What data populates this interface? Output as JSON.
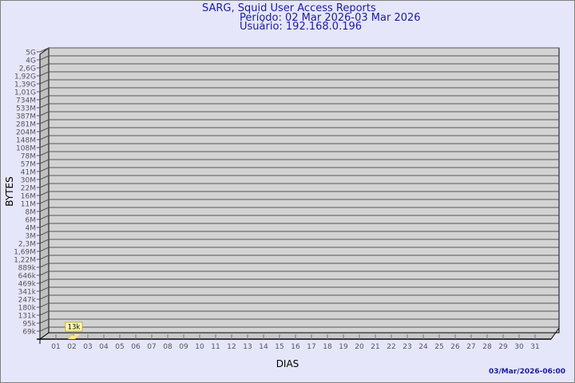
{
  "chart_data": {
    "type": "bar",
    "title": "SARG, Squid User Access Reports",
    "subtitle": [
      "Período: 02 Mar 2026-03 Mar 2026",
      "Usuário: 192.168.0.196"
    ],
    "xlabel": "DIAS",
    "ylabel": "BYTES",
    "y_scale": "log",
    "y_ticks": [
      "5G",
      "4G",
      "2,6G",
      "1,92G",
      "1,39G",
      "1,01G",
      "734M",
      "533M",
      "387M",
      "281M",
      "204M",
      "148M",
      "108M",
      "78M",
      "57M",
      "41M",
      "30M",
      "22M",
      "16M",
      "11M",
      "8M",
      "6M",
      "4M",
      "3M",
      "2,3M",
      "1,69M",
      "1,22M",
      "889k",
      "646k",
      "469k",
      "341k",
      "247k",
      "180k",
      "131k",
      "95k",
      "69k"
    ],
    "categories": [
      "01",
      "02",
      "03",
      "04",
      "05",
      "06",
      "07",
      "08",
      "09",
      "10",
      "11",
      "12",
      "13",
      "14",
      "15",
      "16",
      "17",
      "18",
      "19",
      "20",
      "21",
      "22",
      "23",
      "24",
      "25",
      "26",
      "27",
      "28",
      "29",
      "30",
      "31"
    ],
    "series": [
      {
        "points": [
          {
            "x": "02",
            "value": 13000,
            "label": "13k"
          }
        ]
      }
    ],
    "grid": true,
    "colors": {
      "bar": "#ffe680",
      "panel": "#d3d3d3",
      "text": "#1a1aa6",
      "tick_text": "#555555"
    }
  },
  "footer": {
    "timestamp": "03/Mar/2026-06:00"
  }
}
